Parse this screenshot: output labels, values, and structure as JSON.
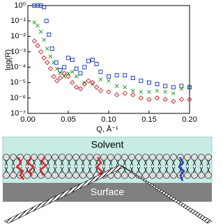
{
  "chart_data": {
    "type": "scatter",
    "log_y": true,
    "y_label": "log(R)",
    "x_label": "Q, Å⁻¹",
    "xlim": [
      0,
      0.2
    ],
    "xticks": [
      {
        "value": 0,
        "label": "0.00"
      },
      0.05,
      {
        "value": 0.1,
        "label": "0.10"
      },
      0.15,
      {
        "value": 0.2,
        "label": "0.20"
      }
    ],
    "ylim": [
      1e-07,
      1
    ],
    "yticks": [
      {
        "value": 1e-07,
        "label": "10⁻⁷"
      },
      {
        "value": 1e-06,
        "label": "10⁻⁶"
      },
      {
        "value": 1e-05,
        "label": "10⁻⁵"
      },
      {
        "value": 0.0001,
        "label": "10⁻⁴"
      },
      {
        "value": 0.001,
        "label": "10⁻³"
      },
      {
        "value": 0.01,
        "label": "10⁻²"
      },
      {
        "value": 0.1,
        "label": "10⁻¹"
      },
      {
        "value": 1,
        "label": "10⁰"
      }
    ],
    "series": [
      {
        "color": "#1f3fbf",
        "marker": "square",
        "x": [
          0.008,
          0.012,
          0.016,
          0.02,
          0.023,
          0.026,
          0.03,
          0.035,
          0.04,
          0.045,
          0.05,
          0.055,
          0.06,
          0.065,
          0.07,
          0.075,
          0.08,
          0.085,
          0.09,
          0.1,
          0.11,
          0.12,
          0.13,
          0.14,
          0.15,
          0.16,
          0.17,
          0.18,
          0.19,
          0.2
        ],
        "values": [
          1,
          1,
          1,
          0.8,
          0.1,
          0.013,
          0.0016,
          0.0002,
          6.3e-05,
          0.0001,
          0.0004,
          0.0003,
          8e-05,
          4e-05,
          0.0001,
          0.00025,
          0.0003,
          0.00016,
          5e-05,
          2.5e-05,
          3e-05,
          3e-05,
          2e-05,
          1.3e-05,
          1e-05,
          8e-06,
          6e-06,
          5e-06,
          6e-06,
          5e-06
        ]
      },
      {
        "color": "#2e9e2e",
        "marker": "cross",
        "x": [
          0.008,
          0.012,
          0.016,
          0.02,
          0.024,
          0.028,
          0.032,
          0.036,
          0.04,
          0.045,
          0.05,
          0.055,
          0.06,
          0.07,
          0.08,
          0.09,
          0.1,
          0.11,
          0.12,
          0.13,
          0.14,
          0.15,
          0.16,
          0.17,
          0.18,
          0.19,
          0.2
        ],
        "values": [
          0.08,
          0.05,
          0.02,
          0.006,
          0.0016,
          0.0005,
          0.0002,
          8e-05,
          4e-05,
          2.5e-05,
          4e-05,
          5e-05,
          2.5e-05,
          1e-05,
          8e-06,
          1.6e-05,
          1.3e-05,
          6e-06,
          5e-06,
          3e-06,
          2.5e-06,
          2.5e-06,
          3e-06,
          2.5e-06,
          2e-06,
          4e-06,
          5e-06
        ]
      },
      {
        "color": "#d42a3a",
        "marker": "diamond",
        "x": [
          0.008,
          0.012,
          0.016,
          0.02,
          0.024,
          0.028,
          0.032,
          0.036,
          0.04,
          0.045,
          0.05,
          0.055,
          0.06,
          0.065,
          0.07,
          0.075,
          0.08,
          0.085,
          0.09,
          0.1,
          0.11,
          0.12,
          0.13,
          0.14,
          0.15,
          0.16,
          0.17,
          0.18,
          0.19,
          0.2
        ],
        "values": [
          0.005,
          0.0025,
          0.001,
          0.0004,
          0.0002,
          8e-05,
          2.5e-05,
          1.3e-05,
          2e-05,
          4e-05,
          2.5e-05,
          1e-05,
          5e-06,
          4e-06,
          8e-06,
          1.3e-05,
          1e-05,
          5e-06,
          3e-06,
          2.5e-06,
          1.6e-06,
          2e-06,
          1.6e-06,
          1e-06,
          8e-07,
          1e-06,
          8e-07,
          6e-07,
          8e-07,
          8e-07
        ]
      }
    ]
  },
  "diagram": {
    "solvent": "Solvent",
    "surface": "Surface"
  }
}
